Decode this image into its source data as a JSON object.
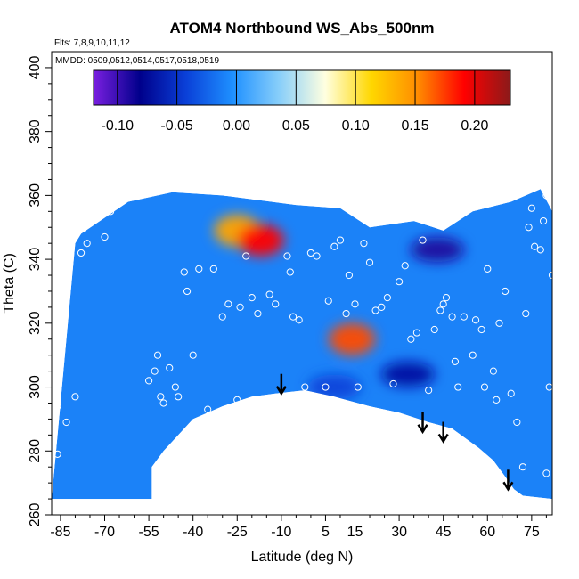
{
  "chart_data": {
    "type": "heatmap",
    "title": "ATOM4 Northbound WS_Abs_500nm",
    "annotations": [
      "Flts: 7,8,9,10,11,12",
      "MMDD: 0509,0512,0514,0517,0518,0519"
    ],
    "xlabel": "Latitude (deg N)",
    "ylabel": "Theta (C)",
    "xlim": [
      -88,
      82
    ],
    "ylim": [
      260,
      405
    ],
    "x_ticks": [
      -85,
      -70,
      -55,
      -40,
      -25,
      -10,
      5,
      15,
      30,
      45,
      60,
      75
    ],
    "y_ticks": [
      260,
      280,
      300,
      320,
      340,
      360,
      380,
      400
    ],
    "colorbar": {
      "range": [
        -0.12,
        0.23
      ],
      "ticks": [
        -0.1,
        -0.05,
        0.0,
        0.05,
        0.1,
        0.15,
        0.2
      ],
      "tick_labels": [
        "-0.10",
        "-0.05",
        "0.00",
        "0.05",
        "0.10",
        "0.15",
        "0.20"
      ],
      "colors": [
        "#7a1fe0",
        "#00008b",
        "#0a40d8",
        "#1e90ff",
        "#87cefa",
        "#ffffe0",
        "#ffd700",
        "#ff8c00",
        "#ff0000",
        "#8b1a1a"
      ]
    },
    "background_value": -0.01,
    "field_features": [
      {
        "label": "high",
        "lat": 14,
        "theta": 315,
        "value": 0.17
      },
      {
        "label": "high",
        "lat": -25,
        "theta": 349,
        "value": 0.14
      },
      {
        "label": "high",
        "lat": -17,
        "theta": 346,
        "value": 0.19
      },
      {
        "label": "low",
        "lat": 43,
        "theta": 343,
        "value": -0.09
      },
      {
        "label": "low",
        "lat": 33,
        "theta": 304,
        "value": -0.07
      },
      {
        "label": "low",
        "lat": 8,
        "theta": 300,
        "value": -0.04
      }
    ],
    "data_extent": {
      "top": [
        [
          -80,
          345
        ],
        [
          -78,
          348
        ],
        [
          -62,
          358
        ],
        [
          -47,
          361
        ],
        [
          -30,
          360
        ],
        [
          -5,
          357
        ],
        [
          10,
          356
        ],
        [
          20,
          350
        ],
        [
          35,
          352
        ],
        [
          45,
          349
        ],
        [
          55,
          355
        ],
        [
          68,
          358
        ],
        [
          78,
          362
        ],
        [
          82,
          355
        ],
        [
          82,
          330
        ]
      ],
      "bottom": [
        [
          -88,
          265
        ],
        [
          -54,
          265
        ],
        [
          -54,
          275
        ],
        [
          -50,
          280
        ],
        [
          -45,
          285
        ],
        [
          -40,
          290
        ],
        [
          -30,
          294
        ],
        [
          -20,
          297
        ],
        [
          -12,
          298
        ],
        [
          -2,
          299
        ],
        [
          8,
          297
        ],
        [
          20,
          294
        ],
        [
          30,
          292
        ],
        [
          40,
          289
        ],
        [
          48,
          287
        ],
        [
          57,
          281
        ],
        [
          62,
          277
        ],
        [
          66,
          272
        ],
        [
          69,
          268
        ],
        [
          72,
          266
        ],
        [
          82,
          265
        ]
      ]
    },
    "observations": [
      [
        -86,
        329
      ],
      [
        -86,
        294
      ],
      [
        -86,
        279
      ],
      [
        -83,
        289
      ],
      [
        -80,
        297
      ],
      [
        -78,
        342
      ],
      [
        -76,
        345
      ],
      [
        -70,
        347
      ],
      [
        -68,
        355
      ],
      [
        -65,
        359
      ],
      [
        -62,
        361
      ],
      [
        -55,
        302
      ],
      [
        -53,
        305
      ],
      [
        -52,
        310
      ],
      [
        -51,
        297
      ],
      [
        -50,
        295
      ],
      [
        -48,
        306
      ],
      [
        -46,
        300
      ],
      [
        -45,
        297
      ],
      [
        -43,
        336
      ],
      [
        -42,
        330
      ],
      [
        -40,
        310
      ],
      [
        -38,
        337
      ],
      [
        -35,
        293
      ],
      [
        -33,
        337
      ],
      [
        -30,
        322
      ],
      [
        -28,
        326
      ],
      [
        -25,
        296
      ],
      [
        -24,
        325
      ],
      [
        -22,
        341
      ],
      [
        -20,
        328
      ],
      [
        -18,
        323
      ],
      [
        -16,
        296
      ],
      [
        -14,
        329
      ],
      [
        -12,
        326
      ],
      [
        -10,
        289
      ],
      [
        -8,
        341
      ],
      [
        -7,
        336
      ],
      [
        -6,
        322
      ],
      [
        -4,
        321
      ],
      [
        -2,
        300
      ],
      [
        0,
        342
      ],
      [
        2,
        341
      ],
      [
        5,
        300
      ],
      [
        6,
        327
      ],
      [
        8,
        344
      ],
      [
        10,
        346
      ],
      [
        12,
        323
      ],
      [
        13,
        335
      ],
      [
        15,
        326
      ],
      [
        16,
        300
      ],
      [
        18,
        345
      ],
      [
        20,
        339
      ],
      [
        22,
        324
      ],
      [
        24,
        325
      ],
      [
        26,
        328
      ],
      [
        28,
        301
      ],
      [
        30,
        333
      ],
      [
        32,
        338
      ],
      [
        34,
        315
      ],
      [
        36,
        317
      ],
      [
        38,
        346
      ],
      [
        40,
        299
      ],
      [
        42,
        318
      ],
      [
        44,
        324
      ],
      [
        45,
        326
      ],
      [
        46,
        328
      ],
      [
        48,
        322
      ],
      [
        49,
        308
      ],
      [
        50,
        300
      ],
      [
        52,
        322
      ],
      [
        55,
        310
      ],
      [
        56,
        321
      ],
      [
        58,
        318
      ],
      [
        59,
        300
      ],
      [
        60,
        337
      ],
      [
        62,
        305
      ],
      [
        63,
        296
      ],
      [
        64,
        320
      ],
      [
        66,
        330
      ],
      [
        68,
        298
      ],
      [
        70,
        289
      ],
      [
        72,
        275
      ],
      [
        73,
        323
      ],
      [
        74,
        350
      ],
      [
        75,
        356
      ],
      [
        76,
        344
      ],
      [
        78,
        343
      ],
      [
        79,
        352
      ],
      [
        80,
        360
      ],
      [
        80,
        273
      ],
      [
        81,
        300
      ],
      [
        82,
        335
      ]
    ],
    "arrows": [
      {
        "lat": -10,
        "theta": 298
      },
      {
        "lat": 38,
        "theta": 286
      },
      {
        "lat": 45,
        "theta": 283
      },
      {
        "lat": 67,
        "theta": 268
      }
    ]
  }
}
